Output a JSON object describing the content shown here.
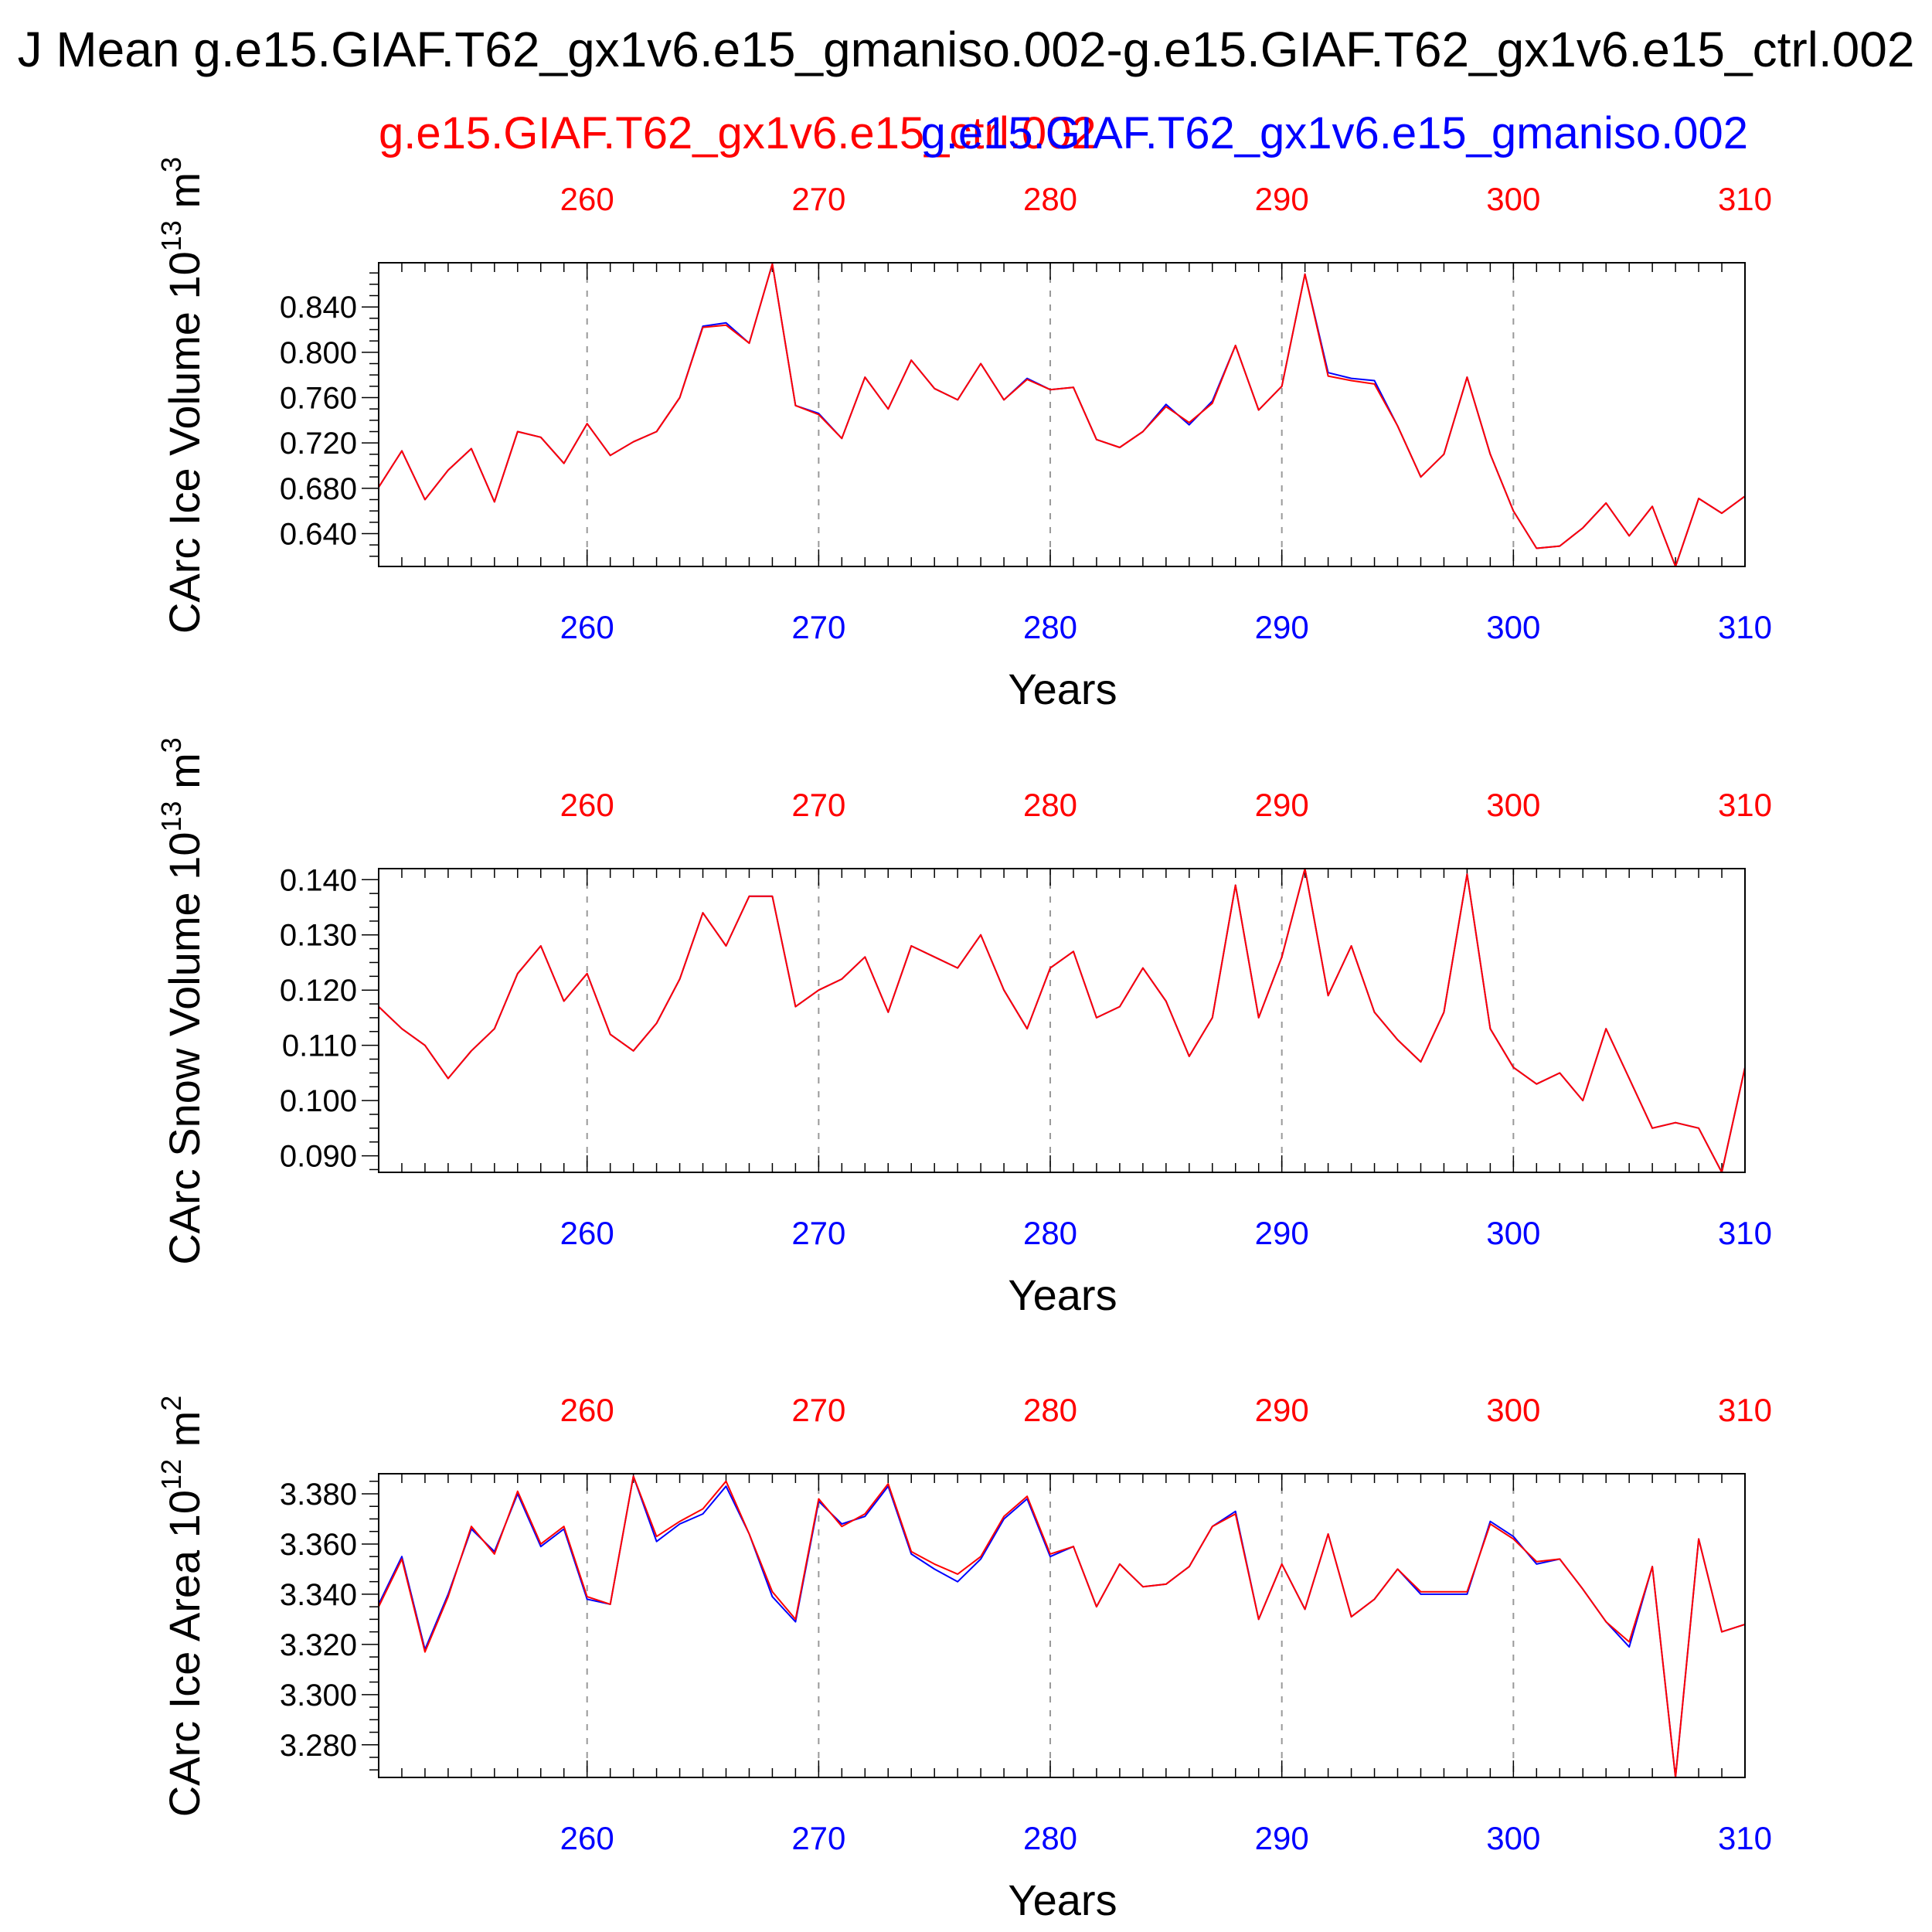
{
  "main_title": "J Mean g.e15.GIAF.T62_gx1v6.e15_gmaniso.002-g.e15.GIAF.T62_gx1v6.e15_ctrl.002",
  "legend_red": "g.e15.GIAF.T62_gx1v6.e15_ctrl.002",
  "legend_blue": "g.e15.GIAF.T62_gx1v6.e15_gmaniso.002",
  "colors": {
    "ctrl": "#ff0000",
    "gmaniso": "#0000ff",
    "axis": "#000000",
    "grid": "#999999"
  },
  "chart_data": [
    {
      "type": "line",
      "ylabel": "CArc Ice Volume 10",
      "ylabel_sup": "13",
      "ylabel_unit": "m",
      "ylabel_unit_sup": "3",
      "xlabel": "Years",
      "xlim": [
        251,
        310
      ],
      "ylim": [
        0.611,
        0.879
      ],
      "yticks": [
        "0.640",
        "0.680",
        "0.720",
        "0.760",
        "0.800",
        "0.840"
      ],
      "xticks": [
        "260",
        "270",
        "280",
        "290",
        "300",
        "310"
      ],
      "grid": "vertical dashed",
      "x_start": 251,
      "series": [
        {
          "name": "g.e15.GIAF.T62_gx1v6.e15_gmaniso.002",
          "values": [
            0.681,
            0.713,
            0.67,
            0.696,
            0.715,
            0.668,
            0.73,
            0.725,
            0.702,
            0.737,
            0.709,
            0.721,
            0.73,
            0.76,
            0.823,
            0.826,
            0.808,
            0.878,
            0.753,
            0.746,
            0.724,
            0.778,
            0.75,
            0.793,
            0.768,
            0.758,
            0.79,
            0.758,
            0.777,
            0.767,
            0.769,
            0.723,
            0.716,
            0.73,
            0.754,
            0.736,
            0.757,
            0.806,
            0.749,
            0.77,
            0.869,
            0.782,
            0.777,
            0.775,
            0.735,
            0.69,
            0.71,
            0.778,
            0.71,
            0.66,
            0.627,
            0.629,
            0.645,
            0.667,
            0.638,
            0.664,
            0.611,
            0.671,
            0.658,
            0.673
          ]
        },
        {
          "name": "g.e15.GIAF.T62_gx1v6.e15_ctrl.002",
          "values": [
            0.681,
            0.713,
            0.67,
            0.696,
            0.715,
            0.668,
            0.73,
            0.725,
            0.702,
            0.737,
            0.709,
            0.721,
            0.73,
            0.76,
            0.822,
            0.824,
            0.808,
            0.878,
            0.753,
            0.745,
            0.724,
            0.778,
            0.75,
            0.793,
            0.768,
            0.758,
            0.79,
            0.758,
            0.776,
            0.767,
            0.769,
            0.723,
            0.716,
            0.73,
            0.752,
            0.738,
            0.755,
            0.806,
            0.749,
            0.77,
            0.869,
            0.779,
            0.775,
            0.772,
            0.735,
            0.69,
            0.71,
            0.778,
            0.71,
            0.66,
            0.627,
            0.629,
            0.645,
            0.667,
            0.638,
            0.664,
            0.611,
            0.671,
            0.658,
            0.673
          ]
        }
      ]
    },
    {
      "type": "line",
      "ylabel": "CArc Snow Volume 10",
      "ylabel_sup": "13",
      "ylabel_unit": "m",
      "ylabel_unit_sup": "3",
      "xlabel": "Years",
      "xlim": [
        251,
        310
      ],
      "ylim": [
        0.087,
        0.142
      ],
      "yticks": [
        "0.090",
        "0.100",
        "0.110",
        "0.120",
        "0.130",
        "0.140"
      ],
      "xticks": [
        "260",
        "270",
        "280",
        "290",
        "300",
        "310"
      ],
      "grid": "vertical dashed",
      "x_start": 251,
      "series": [
        {
          "name": "g.e15.GIAF.T62_gx1v6.e15_gmaniso.002",
          "values": [
            0.117,
            0.113,
            0.11,
            0.104,
            0.109,
            0.113,
            0.123,
            0.128,
            0.118,
            0.123,
            0.112,
            0.109,
            0.114,
            0.122,
            0.134,
            0.128,
            0.137,
            0.137,
            0.117,
            0.12,
            0.122,
            0.126,
            0.116,
            0.128,
            0.126,
            0.124,
            0.13,
            0.12,
            0.113,
            0.124,
            0.127,
            0.115,
            0.117,
            0.124,
            0.118,
            0.108,
            0.115,
            0.139,
            0.115,
            0.126,
            0.142,
            0.119,
            0.128,
            0.116,
            0.111,
            0.107,
            0.116,
            0.141,
            0.113,
            0.106,
            0.103,
            0.105,
            0.1,
            0.113,
            0.104,
            0.095,
            0.096,
            0.095,
            0.087,
            0.106
          ]
        },
        {
          "name": "g.e15.GIAF.T62_gx1v6.e15_ctrl.002",
          "values": [
            0.117,
            0.113,
            0.11,
            0.104,
            0.109,
            0.113,
            0.123,
            0.128,
            0.118,
            0.123,
            0.112,
            0.109,
            0.114,
            0.122,
            0.134,
            0.128,
            0.137,
            0.137,
            0.117,
            0.12,
            0.122,
            0.126,
            0.116,
            0.128,
            0.126,
            0.124,
            0.13,
            0.12,
            0.113,
            0.124,
            0.127,
            0.115,
            0.117,
            0.124,
            0.118,
            0.108,
            0.115,
            0.139,
            0.115,
            0.126,
            0.142,
            0.119,
            0.128,
            0.116,
            0.111,
            0.107,
            0.116,
            0.141,
            0.113,
            0.106,
            0.103,
            0.105,
            0.1,
            0.113,
            0.104,
            0.095,
            0.096,
            0.095,
            0.087,
            0.106
          ]
        }
      ]
    },
    {
      "type": "line",
      "ylabel": "CArc Ice Area 10",
      "ylabel_sup": "12",
      "ylabel_unit": "m",
      "ylabel_unit_sup": "2",
      "xlabel": "Years",
      "xlim": [
        251,
        310
      ],
      "ylim": [
        3.267,
        3.388
      ],
      "yticks": [
        "3.280",
        "3.300",
        "3.320",
        "3.340",
        "3.360",
        "3.380"
      ],
      "xticks": [
        "260",
        "270",
        "280",
        "290",
        "300",
        "310"
      ],
      "grid": "vertical dashed",
      "x_start": 251,
      "series": [
        {
          "name": "g.e15.GIAF.T62_gx1v6.e15_gmaniso.002",
          "values": [
            3.336,
            3.355,
            3.318,
            3.34,
            3.366,
            3.357,
            3.38,
            3.359,
            3.366,
            3.338,
            3.336,
            3.387,
            3.361,
            3.368,
            3.372,
            3.383,
            3.364,
            3.339,
            3.329,
            3.377,
            3.368,
            3.371,
            3.383,
            3.356,
            3.35,
            3.345,
            3.354,
            3.37,
            3.378,
            3.355,
            3.359,
            3.335,
            3.352,
            3.343,
            3.344,
            3.351,
            3.367,
            3.373,
            3.33,
            3.352,
            3.334,
            3.364,
            3.331,
            3.338,
            3.35,
            3.34,
            3.34,
            3.34,
            3.369,
            3.363,
            3.352,
            3.354,
            3.342,
            3.329,
            3.319,
            3.351,
            3.267,
            3.362,
            3.325,
            3.328
          ]
        },
        {
          "name": "g.e15.GIAF.T62_gx1v6.e15_ctrl.002",
          "values": [
            3.335,
            3.354,
            3.317,
            3.339,
            3.367,
            3.356,
            3.381,
            3.36,
            3.367,
            3.339,
            3.336,
            3.387,
            3.363,
            3.369,
            3.374,
            3.385,
            3.364,
            3.341,
            3.33,
            3.378,
            3.367,
            3.372,
            3.384,
            3.357,
            3.352,
            3.348,
            3.355,
            3.371,
            3.379,
            3.356,
            3.359,
            3.335,
            3.352,
            3.343,
            3.344,
            3.351,
            3.367,
            3.372,
            3.33,
            3.352,
            3.334,
            3.364,
            3.331,
            3.338,
            3.35,
            3.341,
            3.341,
            3.341,
            3.368,
            3.362,
            3.353,
            3.354,
            3.342,
            3.329,
            3.321,
            3.351,
            3.267,
            3.362,
            3.325,
            3.328
          ]
        }
      ]
    }
  ]
}
